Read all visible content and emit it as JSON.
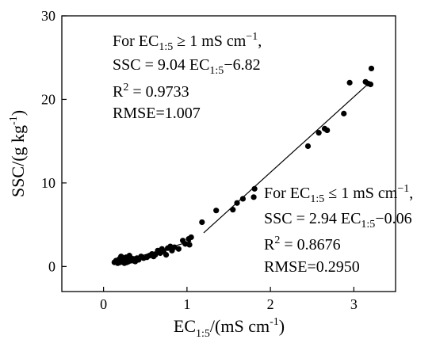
{
  "chart_data": {
    "type": "scatter",
    "xlabel": {
      "main": "EC",
      "sub": "1:5",
      "rest": "/(mS cm",
      "sup": "-1",
      "close": ")"
    },
    "ylabel": {
      "main": "SSC/(g kg",
      "sup": "-1",
      "close": ")"
    },
    "xlim": [
      -0.5,
      3.5
    ],
    "ylim": [
      -3,
      30
    ],
    "x_ticks": [
      0,
      1,
      2,
      3
    ],
    "x_tick_labels": [
      "0",
      "1",
      "2",
      "3"
    ],
    "y_ticks": [
      0,
      10,
      20,
      30
    ],
    "y_tick_labels": [
      "0",
      "10",
      "20",
      "30"
    ],
    "grid": false,
    "legend": "none",
    "series": [
      {
        "points": [
          [
            0.13,
            0.5
          ],
          [
            0.15,
            0.7
          ],
          [
            0.17,
            0.4
          ],
          [
            0.18,
            0.6
          ],
          [
            0.19,
            0.9
          ],
          [
            0.2,
            0.5
          ],
          [
            0.21,
            1.2
          ],
          [
            0.22,
            0.6
          ],
          [
            0.23,
            0.8
          ],
          [
            0.24,
            1.0
          ],
          [
            0.25,
            0.4
          ],
          [
            0.26,
            0.7
          ],
          [
            0.27,
            1.1
          ],
          [
            0.28,
            0.5
          ],
          [
            0.29,
            0.9
          ],
          [
            0.3,
            0.6
          ],
          [
            0.31,
            1.3
          ],
          [
            0.32,
            0.8
          ],
          [
            0.33,
            1.0
          ],
          [
            0.34,
            0.7
          ],
          [
            0.36,
            0.9
          ],
          [
            0.38,
            0.6
          ],
          [
            0.4,
            1.0
          ],
          [
            0.42,
            0.8
          ],
          [
            0.45,
            1.2
          ],
          [
            0.48,
            1.0
          ],
          [
            0.52,
            1.1
          ],
          [
            0.55,
            1.3
          ],
          [
            0.58,
            1.5
          ],
          [
            0.6,
            1.2
          ],
          [
            0.62,
            1.4
          ],
          [
            0.65,
            1.9
          ],
          [
            0.68,
            1.6
          ],
          [
            0.7,
            2.1
          ],
          [
            0.72,
            1.8
          ],
          [
            0.75,
            1.4
          ],
          [
            0.77,
            2.2
          ],
          [
            0.8,
            2.4
          ],
          [
            0.82,
            1.9
          ],
          [
            0.85,
            2.3
          ],
          [
            0.9,
            2.1
          ],
          [
            0.95,
            3.1
          ],
          [
            0.98,
            2.7
          ],
          [
            1.02,
            3.3
          ],
          [
            1.03,
            2.6
          ],
          [
            1.05,
            3.5
          ],
          [
            1.18,
            5.3
          ],
          [
            1.35,
            6.7
          ],
          [
            1.55,
            6.8
          ],
          [
            1.6,
            7.6
          ],
          [
            1.67,
            8.1
          ],
          [
            1.8,
            8.3
          ],
          [
            1.81,
            9.3
          ],
          [
            2.45,
            14.4
          ],
          [
            2.58,
            16.0
          ],
          [
            2.65,
            16.5
          ],
          [
            2.68,
            16.3
          ],
          [
            2.88,
            18.3
          ],
          [
            2.95,
            22.0
          ],
          [
            3.14,
            22.1
          ],
          [
            3.17,
            21.9
          ],
          [
            3.2,
            21.8
          ],
          [
            3.21,
            23.7
          ]
        ]
      }
    ],
    "fits": [
      {
        "slope": 2.94,
        "intercept": -0.06,
        "x_range": [
          0.13,
          1.05
        ]
      },
      {
        "slope": 9.04,
        "intercept": -6.82,
        "x_range": [
          1.2,
          3.2
        ]
      }
    ],
    "annotations": {
      "upper": {
        "line1": {
          "pre": "For EC",
          "sub": "1:5",
          "post": " ≥ 1 mS cm",
          "sup": "−1",
          "end": ","
        },
        "line2": {
          "pre": "SSC = 9.04 EC",
          "sub": "1:5",
          "post": "−6.82"
        },
        "line3": {
          "pre": "R",
          "sup": "2",
          "post": " = 0.9733"
        },
        "line4": "RMSE=1.007"
      },
      "lower": {
        "line1": {
          "pre": "For EC",
          "sub": "1:5",
          "post": " ≤ 1 mS cm",
          "sup": "−1",
          "end": ","
        },
        "line2": {
          "pre": "SSC = 2.94 EC",
          "sub": "1:5",
          "post": "−0.06"
        },
        "line3": {
          "pre": "R",
          "sup": "2",
          "post": " = 0.8676"
        },
        "line4": "RMSE=0.2950"
      }
    }
  }
}
